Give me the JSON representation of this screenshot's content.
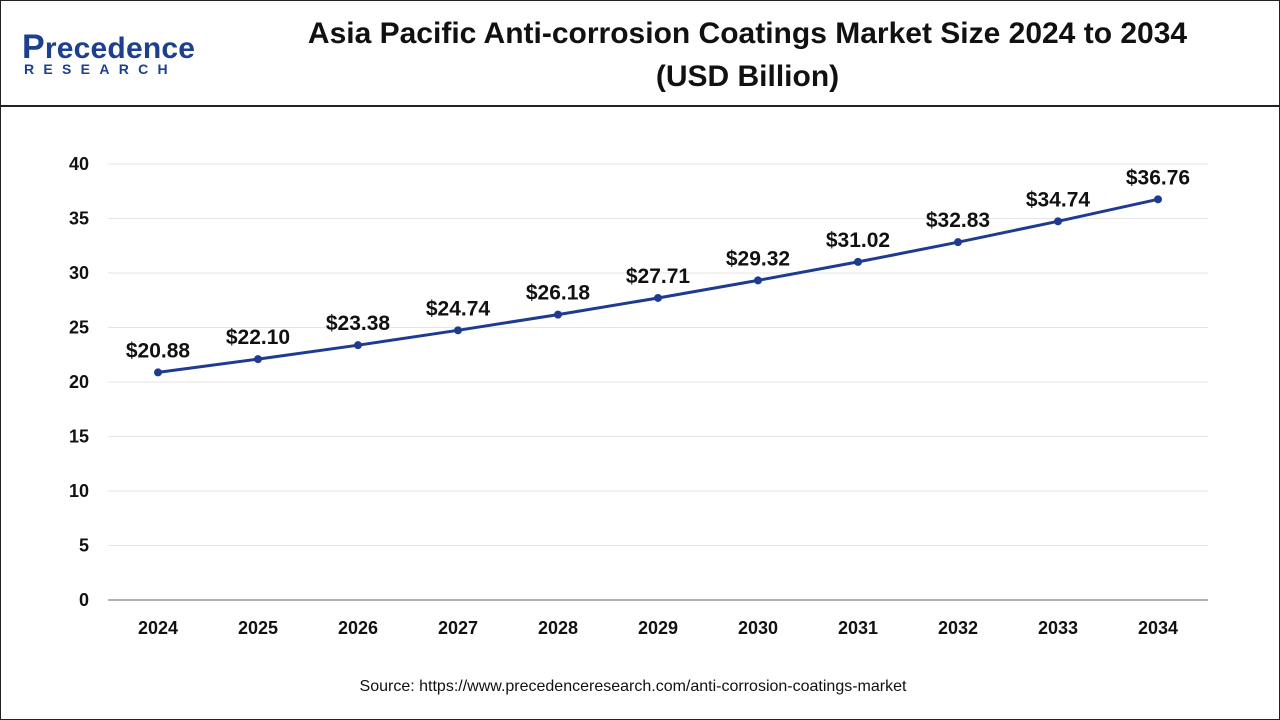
{
  "brand": {
    "logo_initial": "P",
    "logo_rest": "recedence",
    "logo_sub": "RESEARCH"
  },
  "source": "Source: https://www.precedenceresearch.com/anti-corrosion-coatings-market",
  "colors": {
    "line": "#1f3b8f",
    "brand": "#1c3f8f",
    "grid": "#e6e6e6"
  },
  "chart_data": {
    "type": "line",
    "title": "Asia Pacific Anti-corrosion Coatings Market Size 2024 to 2034 (USD Billion)",
    "xlabel": "",
    "ylabel": "",
    "categories": [
      "2024",
      "2025",
      "2026",
      "2027",
      "2028",
      "2029",
      "2030",
      "2031",
      "2032",
      "2033",
      "2034"
    ],
    "series": [
      {
        "values": [
          20.88,
          22.1,
          23.38,
          24.74,
          26.18,
          27.71,
          29.32,
          31.02,
          32.83,
          34.74,
          36.76
        ],
        "labels": [
          "$20.88",
          "$22.10",
          "$23.38",
          "$24.74",
          "$26.18",
          "$27.71",
          "$29.32",
          "$31.02",
          "$32.83",
          "$34.74",
          "$36.76"
        ]
      }
    ],
    "ylim": [
      0,
      40
    ],
    "yticks": [
      "0",
      "5",
      "10",
      "15",
      "20",
      "25",
      "30",
      "35",
      "40"
    ],
    "grid": true,
    "legend": "none"
  }
}
